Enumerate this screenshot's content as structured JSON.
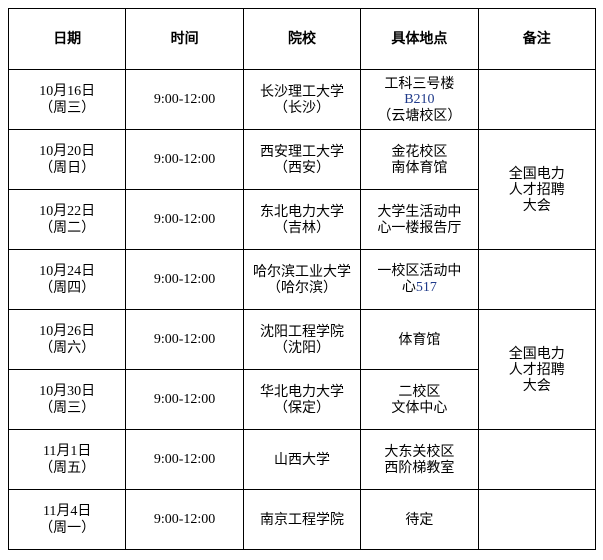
{
  "headers": [
    "日期",
    "时间",
    "院校",
    "具体地点",
    "备注"
  ],
  "rows": [
    {
      "date": "10月16日",
      "weekday": "（周三）",
      "time": "9:00-12:00",
      "school": [
        "长沙理工大学",
        "（长沙）"
      ],
      "location": [
        "工科三号楼",
        "B210",
        "（云塘校区）"
      ]
    },
    {
      "date": "10月20日",
      "weekday": "（周日）",
      "time": "9:00-12:00",
      "school": [
        "西安理工大学",
        "（西安）"
      ],
      "location": [
        "金花校区",
        "南体育馆"
      ]
    },
    {
      "date": "10月22日",
      "weekday": "（周二）",
      "time": "9:00-12:00",
      "school": [
        "东北电力大学",
        "（吉林）"
      ],
      "location": [
        "大学生活动中",
        "心一楼报告厅"
      ]
    },
    {
      "date": "10月24日",
      "weekday": "（周四）",
      "time": "9:00-12:00",
      "school": [
        "哈尔滨工业大学",
        "（哈尔滨）"
      ],
      "location": [
        "一校区活动中",
        "心517"
      ]
    },
    {
      "date": "10月26日",
      "weekday": "（周六）",
      "time": "9:00-12:00",
      "school": [
        "沈阳工程学院",
        "（沈阳）"
      ],
      "location": [
        "体育馆"
      ]
    },
    {
      "date": "10月30日",
      "weekday": "（周三）",
      "time": "9:00-12:00",
      "school": [
        "华北电力大学",
        "（保定）"
      ],
      "location": [
        "二校区",
        "文体中心"
      ]
    },
    {
      "date": "11月1日",
      "weekday": "（周五）",
      "time": "9:00-12:00",
      "school": [
        "山西大学"
      ],
      "location": [
        "大东关校区",
        "西阶梯教室"
      ]
    },
    {
      "date": "11月4日",
      "weekday": "（周一）",
      "time": "9:00-12:00",
      "school": [
        "南京工程学院"
      ],
      "location": [
        "待定"
      ]
    }
  ],
  "remarks": [
    {
      "text": [
        "全国电力",
        "人才招聘",
        "大会"
      ],
      "rows": "2-3"
    },
    {
      "text": [
        "全国电力",
        "人才招聘",
        "大会"
      ],
      "rows": "5-6"
    }
  ]
}
